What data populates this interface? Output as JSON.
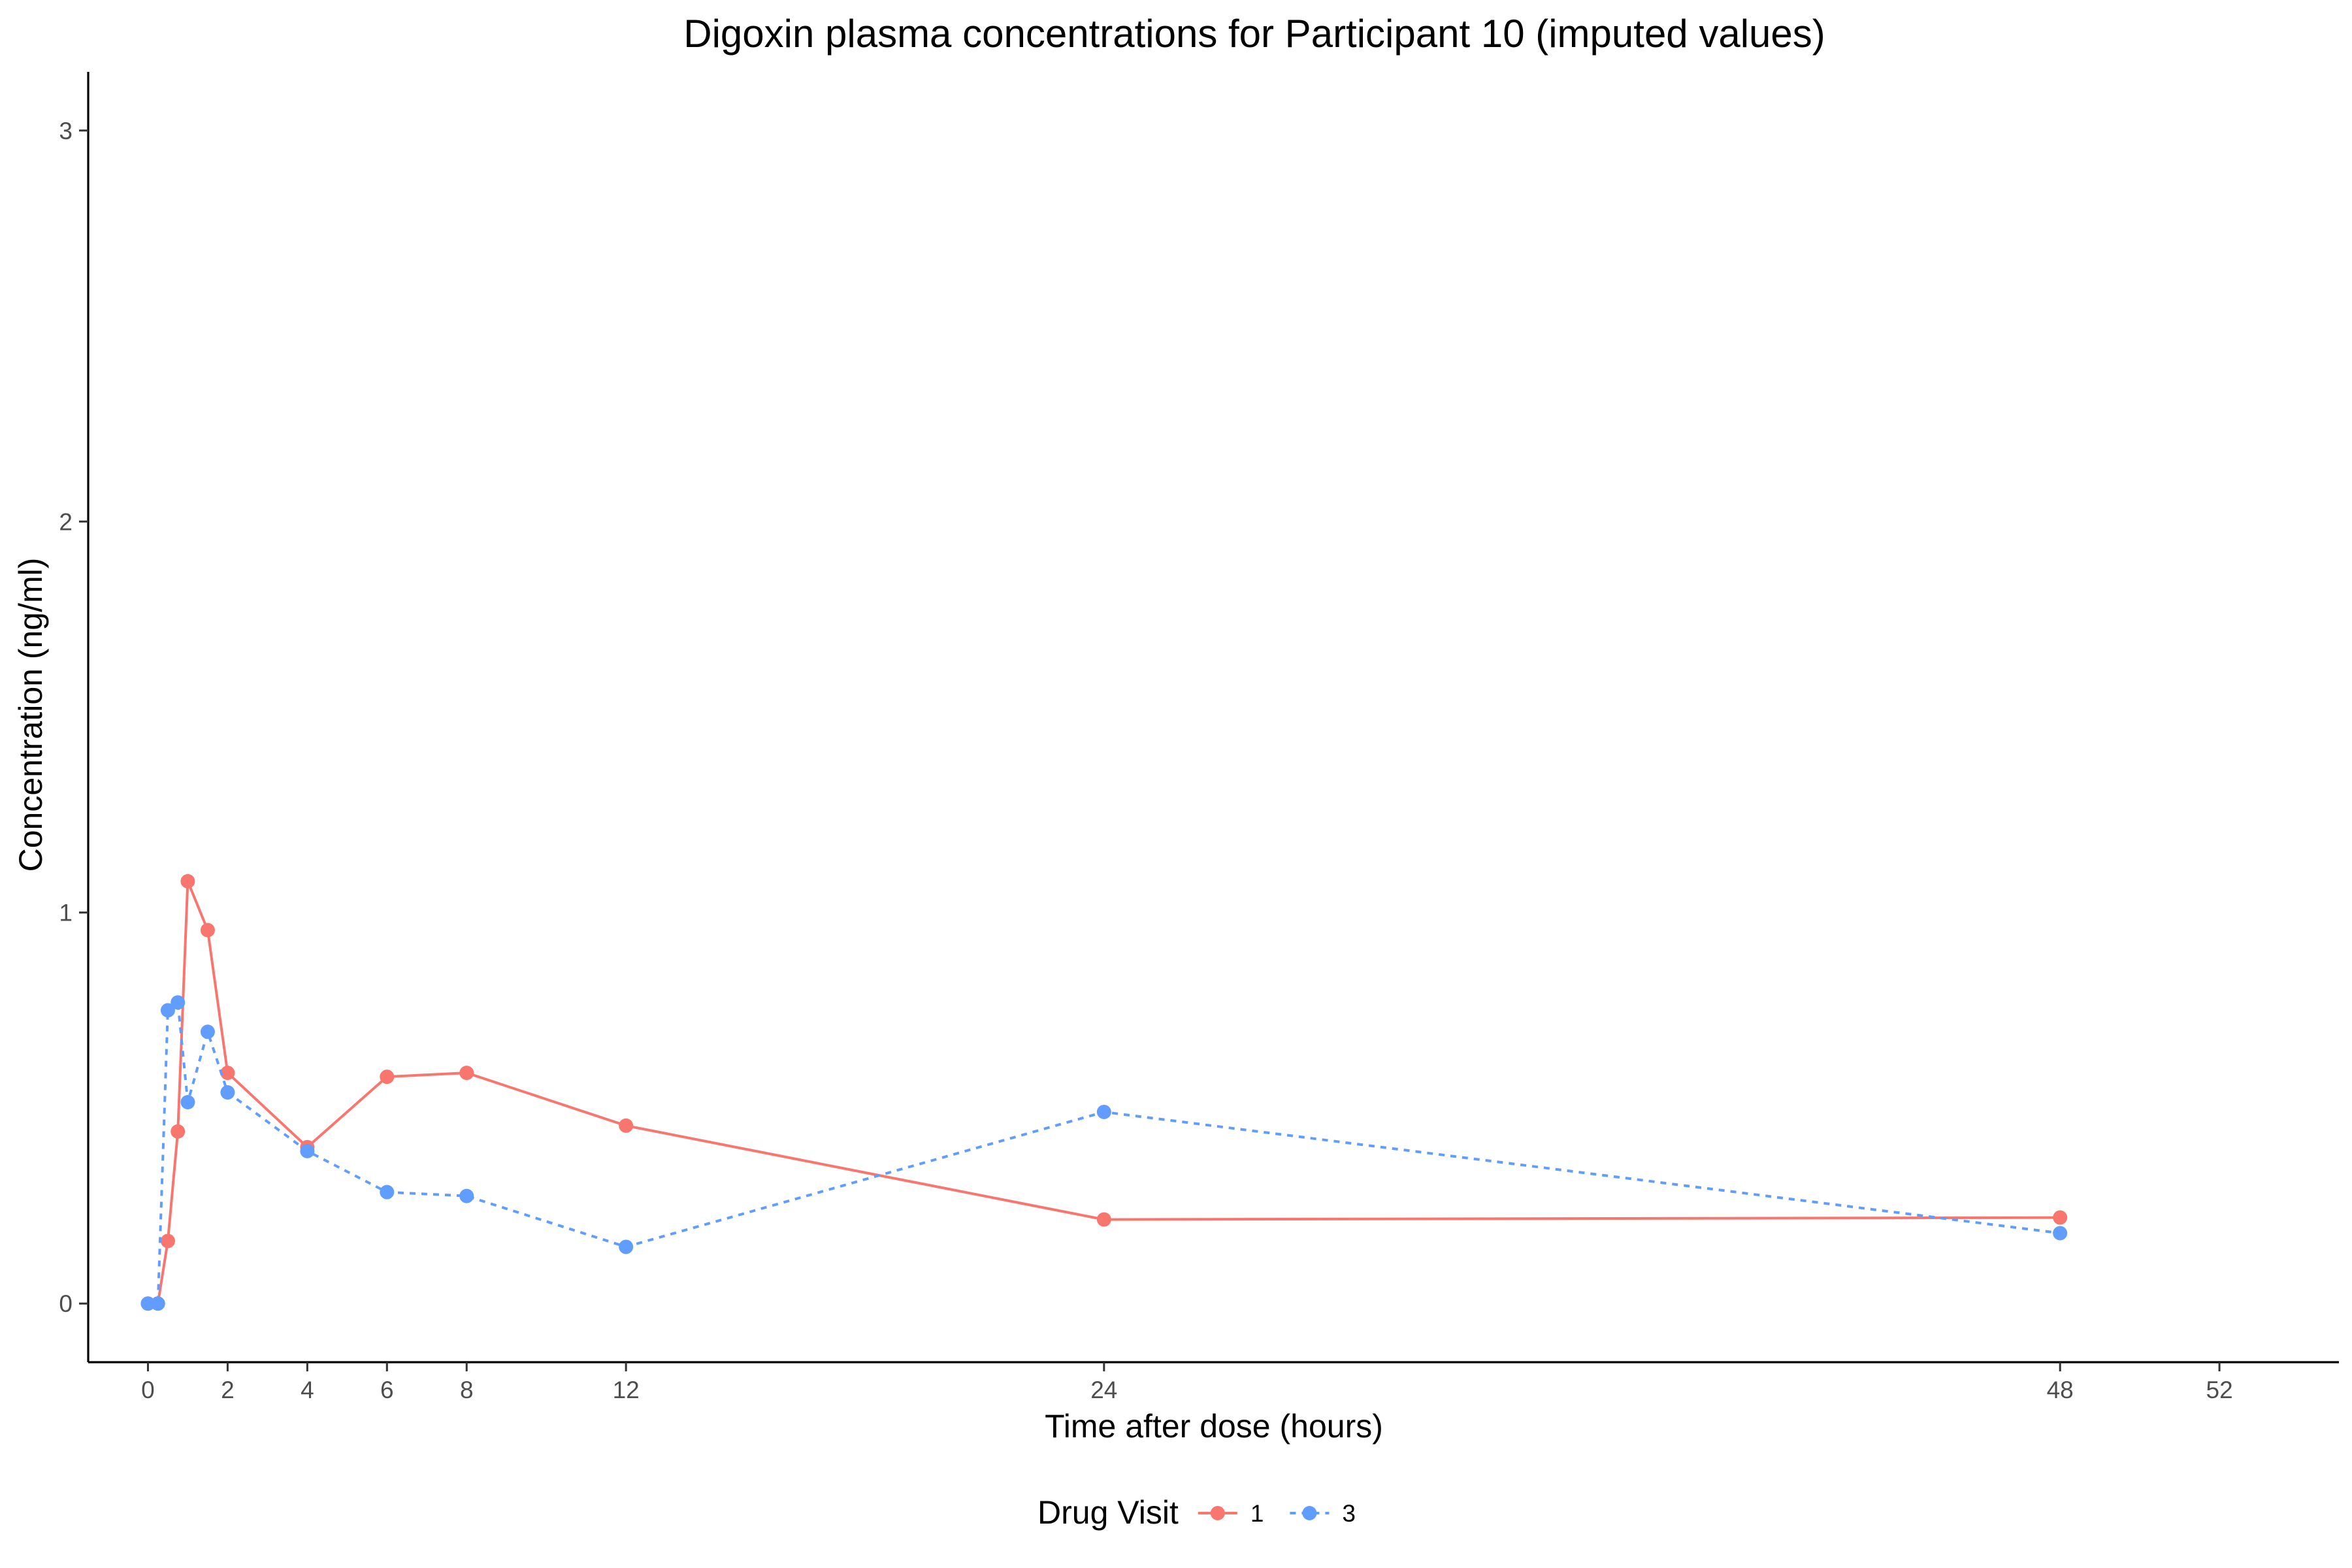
{
  "chart_data": {
    "type": "line",
    "title": "Digoxin plasma concentrations for Participant 10 (imputed values)",
    "xlabel": "Time after dose (hours)",
    "ylabel": "Concentration (ng/ml)",
    "xlim": [
      -1.5,
      55
    ],
    "ylim": [
      -0.15,
      3.15
    ],
    "x_ticks": [
      0,
      2,
      4,
      6,
      8,
      12,
      24,
      48,
      52
    ],
    "y_ticks": [
      0,
      1,
      2,
      3
    ],
    "grid": false,
    "legend": {
      "title": "Drug Visit",
      "position": "bottom"
    },
    "series": [
      {
        "name": "1",
        "color": "#F8766D",
        "line_style": "solid",
        "x": [
          0,
          0.25,
          0.5,
          0.75,
          1,
          1.5,
          2,
          4,
          6,
          8,
          12,
          24,
          48
        ],
        "y": [
          0,
          0,
          0.16,
          0.44,
          1.08,
          0.955,
          0.59,
          0.4,
          0.58,
          0.59,
          0.455,
          0.215,
          0.22
        ]
      },
      {
        "name": "3",
        "color": "#619CFF",
        "line_style": "dashed",
        "x": [
          0,
          0.25,
          0.5,
          0.75,
          1,
          1.5,
          2,
          4,
          6,
          8,
          12,
          24,
          48
        ],
        "y": [
          0,
          0,
          0.75,
          0.77,
          0.515,
          0.695,
          0.54,
          0.39,
          0.285,
          0.275,
          0.145,
          0.49,
          0.18
        ]
      }
    ]
  }
}
